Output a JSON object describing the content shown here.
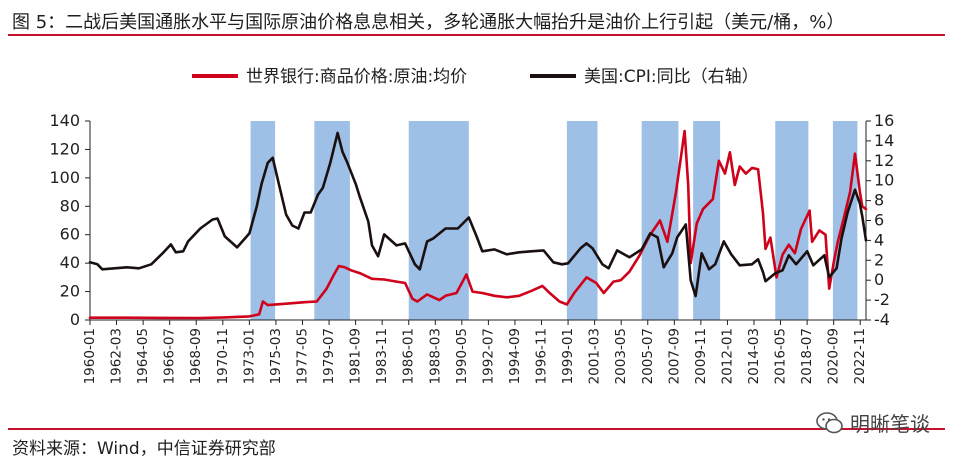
{
  "figure": {
    "title": "图 5：二战后美国通胀水平与国际原油价格息息相关，多轮通胀大幅抬升是油价上行引起（美元/桶，%）",
    "source": "资料来源：Wind，中信证券研究部",
    "watermark": "明晰笔谈"
  },
  "colors": {
    "oil": "#d0021b",
    "cpi": "#1a1010",
    "shade": "#8db4e2",
    "rule": "#c8102e",
    "axis": "#222222"
  },
  "chart_data": {
    "type": "line",
    "x_ticks": [
      "1960-01",
      "1962-03",
      "1964-05",
      "1966-07",
      "1968-09",
      "1970-11",
      "1973-01",
      "1975-03",
      "1977-05",
      "1979-07",
      "1981-09",
      "1983-11",
      "1986-01",
      "1988-03",
      "1990-05",
      "1992-07",
      "1994-09",
      "1996-11",
      "1999-01",
      "2001-03",
      "2003-05",
      "2005-07",
      "2007-09",
      "2009-11",
      "2012-01",
      "2014-03",
      "2016-05",
      "2018-07",
      "2020-09",
      "2022-11"
    ],
    "x_range": [
      1960.0,
      2023.3
    ],
    "y_left": {
      "min": 0,
      "max": 140,
      "ticks": [
        0,
        20,
        40,
        60,
        80,
        100,
        120,
        140
      ]
    },
    "y_right": {
      "min": -4,
      "max": 16,
      "ticks": [
        "-4",
        "-2",
        "0",
        "2",
        "4",
        "6",
        "8",
        "10",
        "12",
        "14",
        "16"
      ]
    },
    "legend_position": "top",
    "shaded_periods": [
      [
        1973.1,
        1975.1
      ],
      [
        1978.3,
        1981.2
      ],
      [
        1986.0,
        1990.9
      ],
      [
        1998.9,
        2001.4
      ],
      [
        2005.0,
        2008.0
      ],
      [
        2009.2,
        2011.4
      ],
      [
        2015.9,
        2018.6
      ],
      [
        2020.6,
        2022.6
      ]
    ],
    "series": [
      {
        "name": "世界银行:商品价格:原油:均价",
        "axis": "left",
        "points": [
          [
            1960,
            1.6
          ],
          [
            1963,
            1.6
          ],
          [
            1966,
            1.5
          ],
          [
            1969,
            1.4
          ],
          [
            1971,
            1.8
          ],
          [
            1973.0,
            2.5
          ],
          [
            1973.8,
            4
          ],
          [
            1974.1,
            13
          ],
          [
            1974.5,
            10.5
          ],
          [
            1976,
            11.5
          ],
          [
            1977.5,
            12.5
          ],
          [
            1978.5,
            13
          ],
          [
            1979.3,
            22
          ],
          [
            1979.9,
            32
          ],
          [
            1980.3,
            38
          ],
          [
            1980.8,
            37
          ],
          [
            1981.3,
            35
          ],
          [
            1982,
            33
          ],
          [
            1983,
            29
          ],
          [
            1984,
            28.5
          ],
          [
            1985,
            27
          ],
          [
            1985.7,
            26
          ],
          [
            1986.3,
            15
          ],
          [
            1986.7,
            13
          ],
          [
            1987.5,
            18
          ],
          [
            1988.5,
            14
          ],
          [
            1989,
            17
          ],
          [
            1989.9,
            19
          ],
          [
            1990.7,
            32
          ],
          [
            1991.2,
            20
          ],
          [
            1992,
            19
          ],
          [
            1993,
            17
          ],
          [
            1994,
            16
          ],
          [
            1995,
            17
          ],
          [
            1996,
            20.5
          ],
          [
            1996.9,
            24
          ],
          [
            1997.5,
            19
          ],
          [
            1998.3,
            13
          ],
          [
            1998.9,
            11
          ],
          [
            1999.5,
            19
          ],
          [
            2000.5,
            30
          ],
          [
            2001.3,
            26
          ],
          [
            2001.9,
            19
          ],
          [
            2002.7,
            27
          ],
          [
            2003.3,
            28
          ],
          [
            2004,
            34
          ],
          [
            2004.8,
            45
          ],
          [
            2005.7,
            60
          ],
          [
            2006.5,
            70
          ],
          [
            2007.1,
            55
          ],
          [
            2007.8,
            90
          ],
          [
            2008.5,
            133
          ],
          [
            2008.8,
            95
          ],
          [
            2009.0,
            40
          ],
          [
            2009.5,
            68
          ],
          [
            2010,
            78
          ],
          [
            2010.8,
            85
          ],
          [
            2011.3,
            112
          ],
          [
            2011.8,
            103
          ],
          [
            2012.2,
            118
          ],
          [
            2012.6,
            95
          ],
          [
            2013,
            108
          ],
          [
            2013.5,
            103
          ],
          [
            2014,
            107
          ],
          [
            2014.5,
            106
          ],
          [
            2014.9,
            75
          ],
          [
            2015.1,
            50
          ],
          [
            2015.5,
            58
          ],
          [
            2016.0,
            30
          ],
          [
            2016.5,
            46
          ],
          [
            2017.0,
            53
          ],
          [
            2017.5,
            47
          ],
          [
            2018.0,
            64
          ],
          [
            2018.7,
            77
          ],
          [
            2018.9,
            55
          ],
          [
            2019.5,
            63
          ],
          [
            2020.0,
            60
          ],
          [
            2020.3,
            22
          ],
          [
            2020.7,
            42
          ],
          [
            2021.0,
            55
          ],
          [
            2021.5,
            72
          ],
          [
            2022.0,
            90
          ],
          [
            2022.4,
            117
          ],
          [
            2022.8,
            90
          ],
          [
            2023.0,
            80
          ],
          [
            2023.3,
            78
          ]
        ]
      },
      {
        "name": "美国:CPI:同比（右轴）",
        "axis": "right",
        "points": [
          [
            1960,
            1.8
          ],
          [
            1960.6,
            1.6
          ],
          [
            1961,
            1.1
          ],
          [
            1962,
            1.2
          ],
          [
            1963,
            1.3
          ],
          [
            1964,
            1.2
          ],
          [
            1965,
            1.6
          ],
          [
            1966,
            2.8
          ],
          [
            1966.6,
            3.6
          ],
          [
            1967,
            2.8
          ],
          [
            1967.6,
            2.9
          ],
          [
            1968,
            3.9
          ],
          [
            1969,
            5.2
          ],
          [
            1970,
            6.1
          ],
          [
            1970.4,
            6.2
          ],
          [
            1971,
            4.4
          ],
          [
            1972,
            3.3
          ],
          [
            1973,
            4.7
          ],
          [
            1973.6,
            7.4
          ],
          [
            1974,
            9.7
          ],
          [
            1974.5,
            11.8
          ],
          [
            1974.9,
            12.3
          ],
          [
            1975.3,
            10.2
          ],
          [
            1976,
            6.6
          ],
          [
            1976.5,
            5.5
          ],
          [
            1977,
            5.2
          ],
          [
            1977.5,
            6.8
          ],
          [
            1978,
            6.8
          ],
          [
            1978.6,
            8.6
          ],
          [
            1979,
            9.3
          ],
          [
            1979.6,
            11.8
          ],
          [
            1980.2,
            14.8
          ],
          [
            1980.6,
            12.9
          ],
          [
            1981,
            11.8
          ],
          [
            1981.7,
            9.6
          ],
          [
            1982,
            8.4
          ],
          [
            1982.7,
            5.9
          ],
          [
            1983,
            3.5
          ],
          [
            1983.5,
            2.4
          ],
          [
            1984,
            4.6
          ],
          [
            1985,
            3.5
          ],
          [
            1985.7,
            3.7
          ],
          [
            1986.5,
            1.6
          ],
          [
            1986.9,
            1.1
          ],
          [
            1987.5,
            3.9
          ],
          [
            1988,
            4.2
          ],
          [
            1989,
            5.2
          ],
          [
            1990,
            5.2
          ],
          [
            1990.9,
            6.3
          ],
          [
            1991.5,
            4.5
          ],
          [
            1992,
            2.9
          ],
          [
            1993,
            3.1
          ],
          [
            1994,
            2.6
          ],
          [
            1995,
            2.8
          ],
          [
            1996,
            2.9
          ],
          [
            1997,
            3.0
          ],
          [
            1997.8,
            1.8
          ],
          [
            1998.5,
            1.6
          ],
          [
            1999,
            1.7
          ],
          [
            2000,
            3.2
          ],
          [
            2000.5,
            3.7
          ],
          [
            2001,
            3.2
          ],
          [
            2001.8,
            1.6
          ],
          [
            2002.3,
            1.2
          ],
          [
            2003,
            3.0
          ],
          [
            2004,
            2.3
          ],
          [
            2005,
            3.1
          ],
          [
            2005.7,
            4.7
          ],
          [
            2006.3,
            4.3
          ],
          [
            2006.8,
            1.3
          ],
          [
            2007.5,
            2.7
          ],
          [
            2007.9,
            4.3
          ],
          [
            2008.6,
            5.6
          ],
          [
            2009.0,
            0.0
          ],
          [
            2009.4,
            -1.6
          ],
          [
            2009.9,
            2.7
          ],
          [
            2010.5,
            1.1
          ],
          [
            2011.0,
            1.6
          ],
          [
            2011.7,
            3.9
          ],
          [
            2012.3,
            2.6
          ],
          [
            2013,
            1.5
          ],
          [
            2014,
            1.6
          ],
          [
            2014.5,
            2.1
          ],
          [
            2014.9,
            0.8
          ],
          [
            2015.1,
            -0.1
          ],
          [
            2015.9,
            0.7
          ],
          [
            2016.5,
            1.0
          ],
          [
            2017,
            2.5
          ],
          [
            2017.6,
            1.6
          ],
          [
            2018.5,
            2.9
          ],
          [
            2019,
            1.5
          ],
          [
            2019.9,
            2.5
          ],
          [
            2020.3,
            0.3
          ],
          [
            2020.9,
            1.2
          ],
          [
            2021.3,
            4.2
          ],
          [
            2021.8,
            6.8
          ],
          [
            2022.4,
            9.1
          ],
          [
            2022.8,
            7.7
          ],
          [
            2023.0,
            6.4
          ],
          [
            2023.3,
            4.0
          ]
        ]
      }
    ]
  }
}
